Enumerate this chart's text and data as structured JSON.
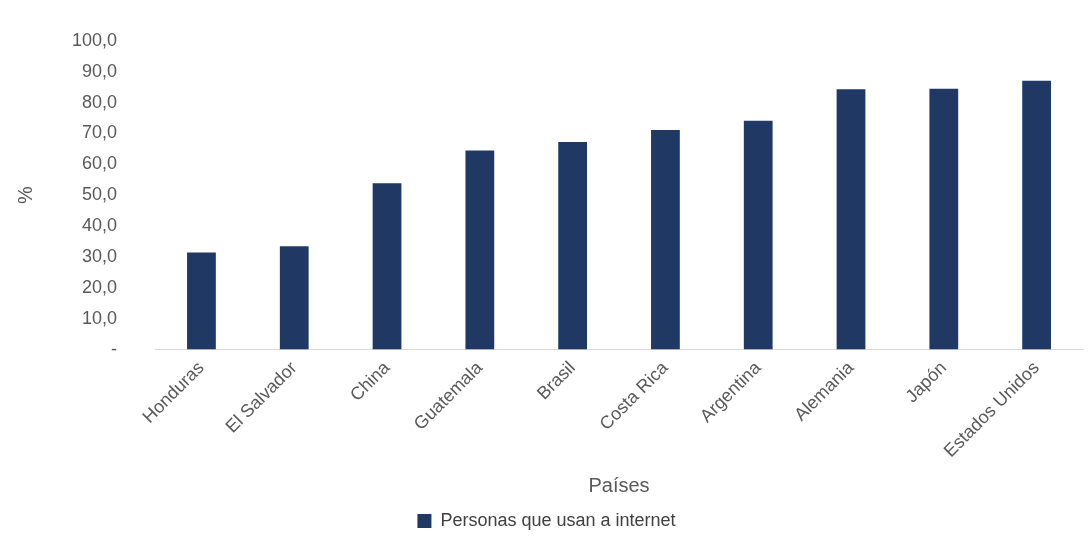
{
  "chart_data": {
    "type": "bar",
    "xlabel": "Países",
    "ylabel": "%",
    "categories": [
      "Honduras",
      "El Salvador",
      "China",
      "Guatemala",
      "Brasil",
      "Costa Rica",
      "Argentina",
      "Alemania",
      "Japón",
      "Estados Unidos"
    ],
    "series": [
      {
        "name": "Personas que usan a internet",
        "color": "#203864",
        "values": [
          31.4,
          33.5,
          53.9,
          64.5,
          67.2,
          71.1,
          74.1,
          84.3,
          84.5,
          87.1
        ]
      }
    ],
    "ylim": [
      0,
      100
    ],
    "yticks": [
      {
        "value": 0,
        "label": "-"
      },
      {
        "value": 10,
        "label": "10,0"
      },
      {
        "value": 20,
        "label": "20,0"
      },
      {
        "value": 30,
        "label": "30,0"
      },
      {
        "value": 40,
        "label": "40,0"
      },
      {
        "value": 50,
        "label": "50,0"
      },
      {
        "value": 60,
        "label": "60,0"
      },
      {
        "value": 70,
        "label": "70,0"
      },
      {
        "value": 80,
        "label": "80,0"
      },
      {
        "value": 90,
        "label": "90,0"
      },
      {
        "value": 100,
        "label": "100,0"
      }
    ],
    "grid": false,
    "legend": "bottom"
  }
}
